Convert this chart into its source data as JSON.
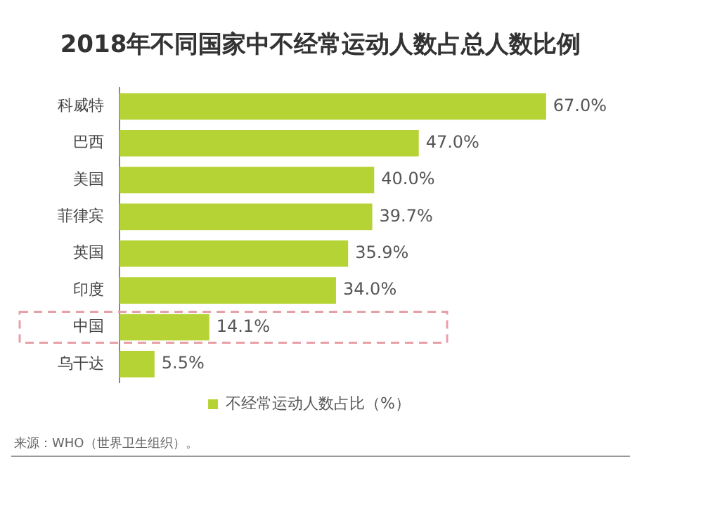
{
  "chart_data": {
    "type": "bar",
    "orientation": "horizontal",
    "title": "2018年不同国家中不经常运动人数占总人数比例",
    "categories": [
      "科威特",
      "巴西",
      "美国",
      "菲律宾",
      "英国",
      "印度",
      "中国",
      "乌干达"
    ],
    "series": [
      {
        "name": "不经常运动人数占比（%）",
        "color": "#b5d334",
        "values": [
          67.0,
          47.0,
          40.0,
          39.7,
          35.9,
          34.0,
          14.1,
          5.5
        ],
        "value_labels": [
          "67.0%",
          "47.0%",
          "40.0%",
          "39.7%",
          "35.9%",
          "34.0%",
          "14.1%",
          "5.5%"
        ]
      }
    ],
    "legend": "bottom",
    "annotations": [
      "来源：WHO（世界卫生组织）。"
    ]
  }
}
